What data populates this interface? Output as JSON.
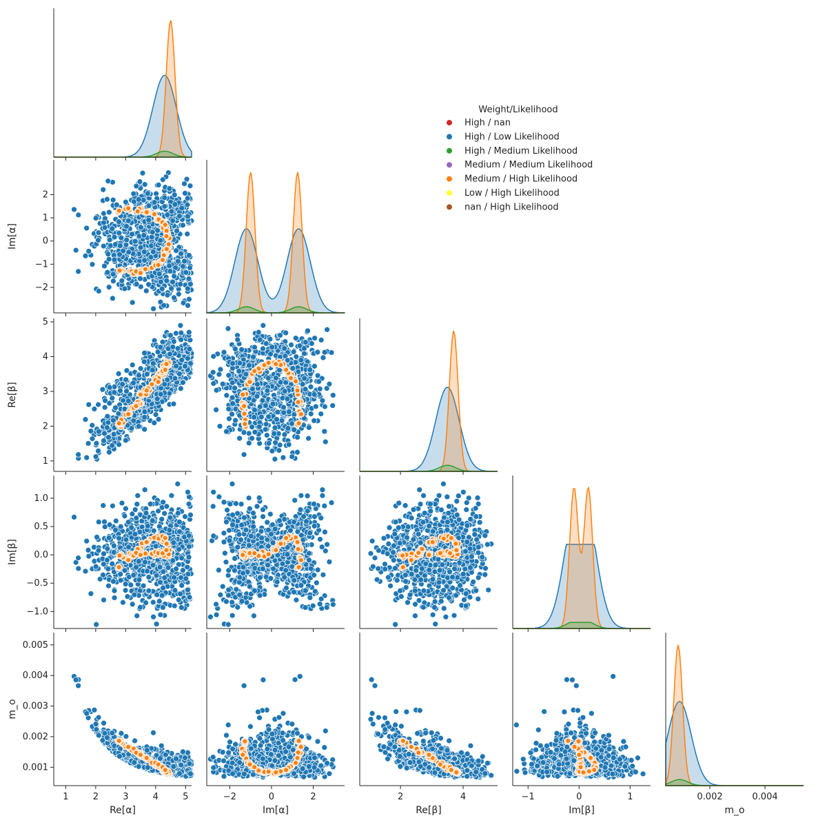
{
  "chart_data": {
    "type": "scatter",
    "kind": "pairplot (corner)",
    "variables": [
      "Re[α]",
      "Im[α]",
      "Re[β]",
      "Im[β]",
      "m_o"
    ],
    "axis_labels": {
      "x": [
        "Re[α]",
        "Im[α]",
        "Re[β]",
        "Im[β]",
        "m_o"
      ],
      "y": [
        "",
        "Im[α]",
        "Re[β]",
        "Im[β]",
        "m_o"
      ]
    },
    "ranges": [
      [
        0.6,
        5.2
      ],
      [
        -3.1,
        3.5
      ],
      [
        0.7,
        5.1
      ],
      [
        -1.3,
        1.4
      ],
      [
        0.0004,
        0.0054
      ]
    ],
    "ticks": {
      "Re[α]": [
        "1",
        "2",
        "3",
        "4",
        "5"
      ],
      "Im[α]": [
        "−2",
        "0",
        "2"
      ],
      "Im[α]_y": [
        "−2",
        "−1",
        "0",
        "1",
        "2"
      ],
      "Re[β]": [
        "2",
        "4"
      ],
      "Re[β]_y": [
        "1",
        "2",
        "3",
        "4",
        "5"
      ],
      "Im[β]": [
        "−1",
        "0",
        "1"
      ],
      "Im[β]_y": [
        "−1.0",
        "−0.5",
        "0.0",
        "0.5",
        "1.0"
      ],
      "m_o": [
        "0.002",
        "0.004"
      ],
      "m_o_y": [
        "0.001",
        "0.002",
        "0.003",
        "0.004",
        "0.005"
      ]
    },
    "legend": {
      "title": "Weight/Likelihood",
      "placement": "upper-right",
      "entries": [
        {
          "label": "High / nan",
          "color": "#d62728"
        },
        {
          "label": "High / Low Likelihood",
          "color": "#1f77b4"
        },
        {
          "label": "High / Medium Likelihood",
          "color": "#2ca02c"
        },
        {
          "label": "Medium / Medium Likelihood",
          "color": "#9467bd"
        },
        {
          "label": "Medium / High Likelihood",
          "color": "#ff7f0e"
        },
        {
          "label": "Low / High Likelihood",
          "color": "#ffff33"
        },
        {
          "label": "nan / High Likelihood",
          "color": "#a65628"
        }
      ]
    },
    "marginal_modes": {
      "Re[α]": {
        "High / Low Likelihood": 4.3,
        "Medium / High Likelihood": 4.5
      },
      "Im[α]": {
        "High / Low Likelihood": [
          -1.2,
          1.3
        ],
        "Medium / High Likelihood": [
          -1.0,
          1.25
        ]
      },
      "Re[β]": {
        "High / Low Likelihood": 3.5,
        "Medium / High Likelihood": 3.7
      },
      "Im[β]": {
        "High / Low Likelihood": [
          -0.1,
          0.15
        ],
        "Medium / High Likelihood": [
          -0.1,
          0.18
        ]
      },
      "m_o": {
        "High / Low Likelihood": 0.0009,
        "Medium / High Likelihood": 0.00085
      }
    },
    "grid": false
  }
}
